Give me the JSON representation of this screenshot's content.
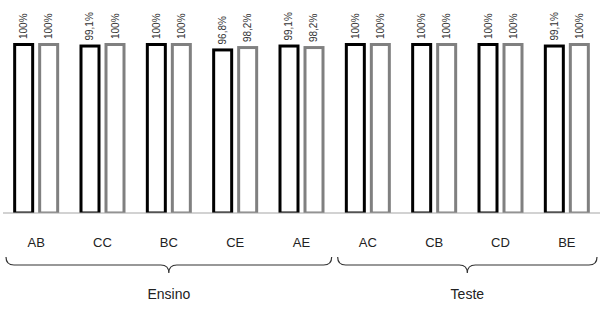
{
  "chart_data": {
    "type": "bar",
    "categories": [
      "AB",
      "CC",
      "BC",
      "CE",
      "AE",
      "AC",
      "CB",
      "CD",
      "BE"
    ],
    "series": [
      {
        "color": "#000000",
        "values": [
          100,
          99.1,
          100,
          96.8,
          99.1,
          100,
          100,
          100,
          99.1
        ],
        "value_labels": [
          "100%",
          "99,1%",
          "100%",
          "96,8%",
          "99,1%",
          "100%",
          "100%",
          "100%",
          "99,1%"
        ]
      },
      {
        "color": "#808080",
        "values": [
          100,
          100,
          100,
          98.2,
          98.2,
          100,
          100,
          100,
          100
        ],
        "value_labels": [
          "100%",
          "100%",
          "100%",
          "98,2%",
          "98,2%",
          "100%",
          "100%",
          "100%",
          "100%"
        ]
      }
    ],
    "groups": [
      {
        "label": "Ensino",
        "categories": [
          "AB",
          "CC",
          "BC",
          "CE",
          "AE"
        ]
      },
      {
        "label": "Teste",
        "categories": [
          "AC",
          "CB",
          "CD",
          "BE"
        ]
      }
    ],
    "ylim": [
      0,
      100
    ],
    "data_labels": true,
    "tick_labels": "x"
  }
}
